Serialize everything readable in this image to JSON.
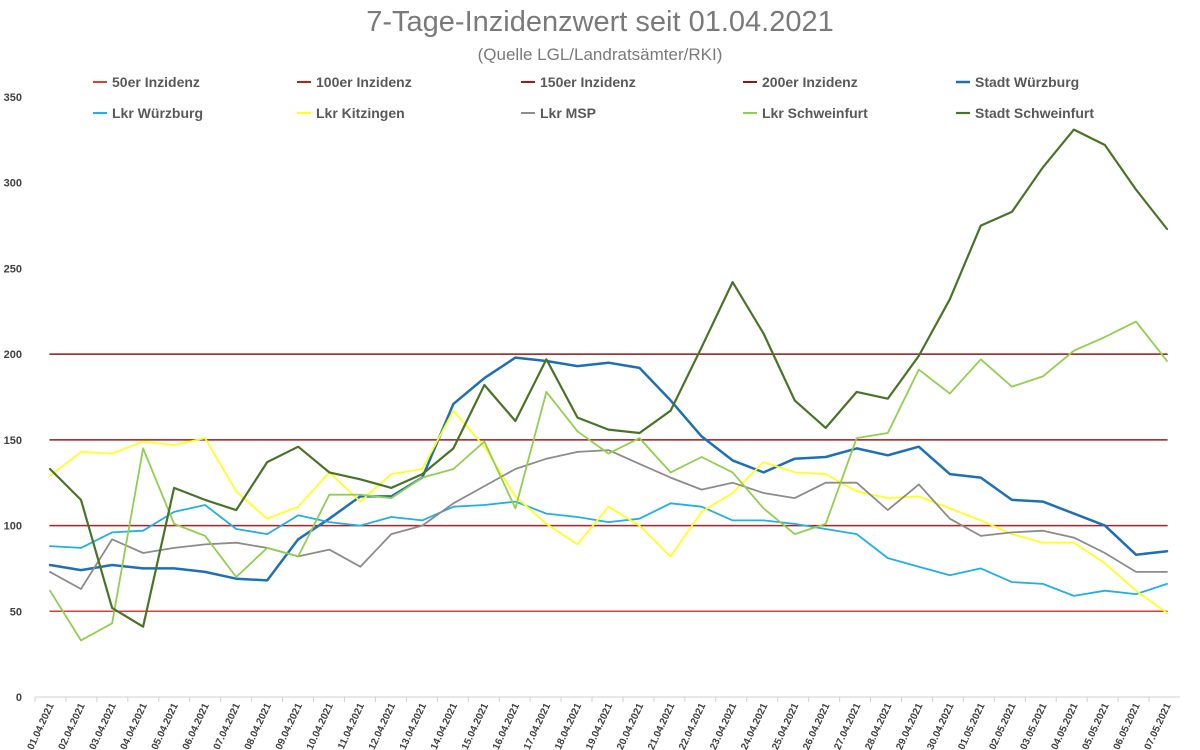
{
  "chart_data": {
    "type": "line",
    "title": "7-Tage-Inzidenzwert seit 01.04.2021",
    "subtitle": "(Quelle LGL/Landratsämter/RKI)",
    "xlabel": "",
    "ylabel": "",
    "ylim": [
      0,
      350
    ],
    "yticks": [
      "0",
      "50",
      "100",
      "150",
      "200",
      "250",
      "300",
      "350"
    ],
    "categories": [
      "01.04.2021",
      "02.04.2021",
      "03.04.2021",
      "04.04.2021",
      "05.04.2021",
      "06.04.2021",
      "07.04.2021",
      "08.04.2021",
      "09.04.2021",
      "10.04.2021",
      "11.04.2021",
      "12.04.2021",
      "13.04.2021",
      "14.04.2021",
      "15.04.2021",
      "16.04.2021",
      "17.04.2021",
      "18.04.2021",
      "19.04.2021",
      "20.04.2021",
      "21.04.2021",
      "22.04.2021",
      "23.04.2021",
      "24.04.2021",
      "25.04.2021",
      "26.04.2021",
      "27.04.2021",
      "28.04.2021",
      "29.04.2021",
      "30.04.2021",
      "01.05.2021",
      "02.05.2021",
      "03.05.2021",
      "04.05.2021",
      "05.05.2021",
      "06.05.2021",
      "07.05.2021"
    ],
    "legend_position": "top",
    "series": [
      {
        "name": "50er Inzidenz",
        "color": "#e03c3c",
        "width": 1.5,
        "values": [
          50,
          50,
          50,
          50,
          50,
          50,
          50,
          50,
          50,
          50,
          50,
          50,
          50,
          50,
          50,
          50,
          50,
          50,
          50,
          50,
          50,
          50,
          50,
          50,
          50,
          50,
          50,
          50,
          50,
          50,
          50,
          50,
          50,
          50,
          50,
          50,
          50
        ]
      },
      {
        "name": "100er Inzidenz",
        "color": "#b22222",
        "width": 1.5,
        "values": [
          100,
          100,
          100,
          100,
          100,
          100,
          100,
          100,
          100,
          100,
          100,
          100,
          100,
          100,
          100,
          100,
          100,
          100,
          100,
          100,
          100,
          100,
          100,
          100,
          100,
          100,
          100,
          100,
          100,
          100,
          100,
          100,
          100,
          100,
          100,
          100,
          100
        ]
      },
      {
        "name": "150er Inzidenz",
        "color": "#9b1c1c",
        "width": 1.5,
        "values": [
          150,
          150,
          150,
          150,
          150,
          150,
          150,
          150,
          150,
          150,
          150,
          150,
          150,
          150,
          150,
          150,
          150,
          150,
          150,
          150,
          150,
          150,
          150,
          150,
          150,
          150,
          150,
          150,
          150,
          150,
          150,
          150,
          150,
          150,
          150,
          150,
          150
        ]
      },
      {
        "name": "200er Inzidenz",
        "color": "#8b1a1a",
        "width": 1.5,
        "values": [
          200,
          200,
          200,
          200,
          200,
          200,
          200,
          200,
          200,
          200,
          200,
          200,
          200,
          200,
          200,
          200,
          200,
          200,
          200,
          200,
          200,
          200,
          200,
          200,
          200,
          200,
          200,
          200,
          200,
          200,
          200,
          200,
          200,
          200,
          200,
          200,
          200
        ]
      },
      {
        "name": "Stadt Würzburg",
        "color": "#1f6fb4",
        "width": 2.5,
        "values": [
          77,
          74,
          77,
          75,
          75,
          73,
          69,
          68,
          92,
          104,
          117,
          117,
          128,
          171,
          186,
          198,
          196,
          193,
          195,
          192,
          173,
          152,
          138,
          131,
          139,
          140,
          145,
          141,
          146,
          130,
          128,
          115,
          114,
          107,
          100,
          83,
          85
        ]
      },
      {
        "name": "Lkr Würzburg",
        "color": "#23b0e0",
        "width": 1.8,
        "values": [
          88,
          87,
          96,
          97,
          108,
          112,
          98,
          95,
          106,
          102,
          100,
          105,
          103,
          111,
          112,
          114,
          107,
          105,
          102,
          104,
          113,
          111,
          103,
          103,
          101,
          98,
          95,
          81,
          76,
          71,
          75,
          67,
          66,
          59,
          62,
          60,
          66
        ]
      },
      {
        "name": "Lkr Kitzingen",
        "color": "#ffff22",
        "width": 1.8,
        "values": [
          129,
          143,
          142,
          149,
          147,
          151,
          120,
          104,
          111,
          131,
          114,
          130,
          133,
          167,
          146,
          117,
          101,
          89,
          111,
          100,
          82,
          108,
          119,
          137,
          131,
          130,
          120,
          116,
          117,
          110,
          103,
          95,
          90,
          90,
          78,
          62,
          49
        ]
      },
      {
        "name": "Lkr MSP",
        "color": "#8c8c8c",
        "width": 1.8,
        "values": [
          73,
          63,
          92,
          84,
          87,
          89,
          90,
          87,
          82,
          86,
          76,
          95,
          100,
          113,
          123,
          133,
          139,
          143,
          144,
          136,
          128,
          121,
          125,
          119,
          116,
          125,
          125,
          109,
          124,
          104,
          94,
          96,
          97,
          93,
          84,
          73,
          73
        ]
      },
      {
        "name": "Lkr Schweinfurt",
        "color": "#92cf50",
        "width": 1.8,
        "values": [
          62,
          33,
          43,
          145,
          101,
          94,
          70,
          87,
          82,
          118,
          118,
          116,
          128,
          133,
          149,
          110,
          178,
          155,
          142,
          151,
          131,
          140,
          131,
          110,
          95,
          101,
          151,
          154,
          191,
          177,
          197,
          181,
          187,
          202,
          210,
          219,
          196
        ]
      },
      {
        "name": "Stadt Schweinfurt",
        "color": "#4a7328",
        "width": 2.2,
        "values": [
          133,
          115,
          52,
          41,
          122,
          115,
          109,
          137,
          146,
          131,
          127,
          122,
          130,
          145,
          182,
          161,
          197,
          163,
          156,
          154,
          167,
          204,
          242,
          212,
          173,
          157,
          178,
          174,
          199,
          232,
          275,
          283,
          309,
          331,
          322,
          296,
          273
        ]
      }
    ]
  }
}
